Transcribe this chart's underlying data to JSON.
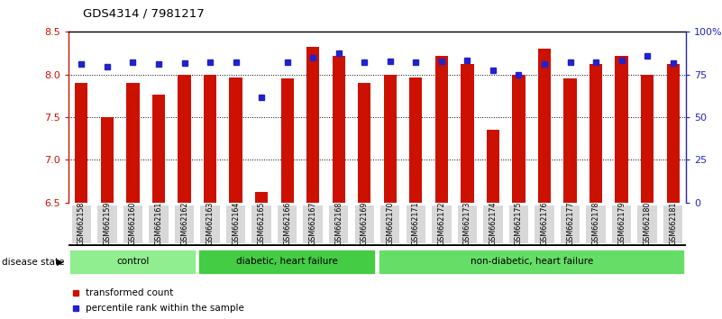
{
  "title": "GDS4314 / 7981217",
  "samples": [
    "GSM662158",
    "GSM662159",
    "GSM662160",
    "GSM662161",
    "GSM662162",
    "GSM662163",
    "GSM662164",
    "GSM662165",
    "GSM662166",
    "GSM662167",
    "GSM662168",
    "GSM662169",
    "GSM662170",
    "GSM662171",
    "GSM662172",
    "GSM662173",
    "GSM662174",
    "GSM662175",
    "GSM662176",
    "GSM662177",
    "GSM662178",
    "GSM662179",
    "GSM662180",
    "GSM662181"
  ],
  "bar_values": [
    7.9,
    7.5,
    7.9,
    7.77,
    8.0,
    8.0,
    7.97,
    6.62,
    7.95,
    8.32,
    8.22,
    7.9,
    8.0,
    7.97,
    8.22,
    8.12,
    7.35,
    8.0,
    8.3,
    7.95,
    8.12,
    8.22,
    8.0,
    8.12
  ],
  "blue_values": [
    8.12,
    8.09,
    8.14,
    8.12,
    8.13,
    8.14,
    8.15,
    7.73,
    8.15,
    8.2,
    8.25,
    8.14,
    8.16,
    8.14,
    8.16,
    8.17,
    8.05,
    8.0,
    8.12,
    8.14,
    8.15,
    8.17,
    8.22,
    8.13
  ],
  "groups": [
    {
      "label": "control",
      "start": 0,
      "end": 5,
      "color": "#90ee90"
    },
    {
      "label": "diabetic, heart failure",
      "start": 5,
      "end": 12,
      "color": "#44cc44"
    },
    {
      "label": "non-diabetic, heart failure",
      "start": 12,
      "end": 24,
      "color": "#66dd66"
    }
  ],
  "ylim": [
    6.5,
    8.5
  ],
  "y2lim": [
    0,
    100
  ],
  "yticks": [
    6.5,
    7.0,
    7.5,
    8.0,
    8.5
  ],
  "y2ticks": [
    0,
    25,
    50,
    75,
    100
  ],
  "y2ticklabels": [
    "0",
    "25",
    "50",
    "75",
    "100%"
  ],
  "grid_values": [
    7.0,
    7.5,
    8.0
  ],
  "bar_color": "#cc1100",
  "blue_color": "#2222cc",
  "tick_bg_color": "#d8d8d8",
  "legend_items": [
    {
      "label": "transformed count",
      "color": "#cc1100"
    },
    {
      "label": "percentile rank within the sample",
      "color": "#2222cc"
    }
  ],
  "disease_state_label": "disease state"
}
